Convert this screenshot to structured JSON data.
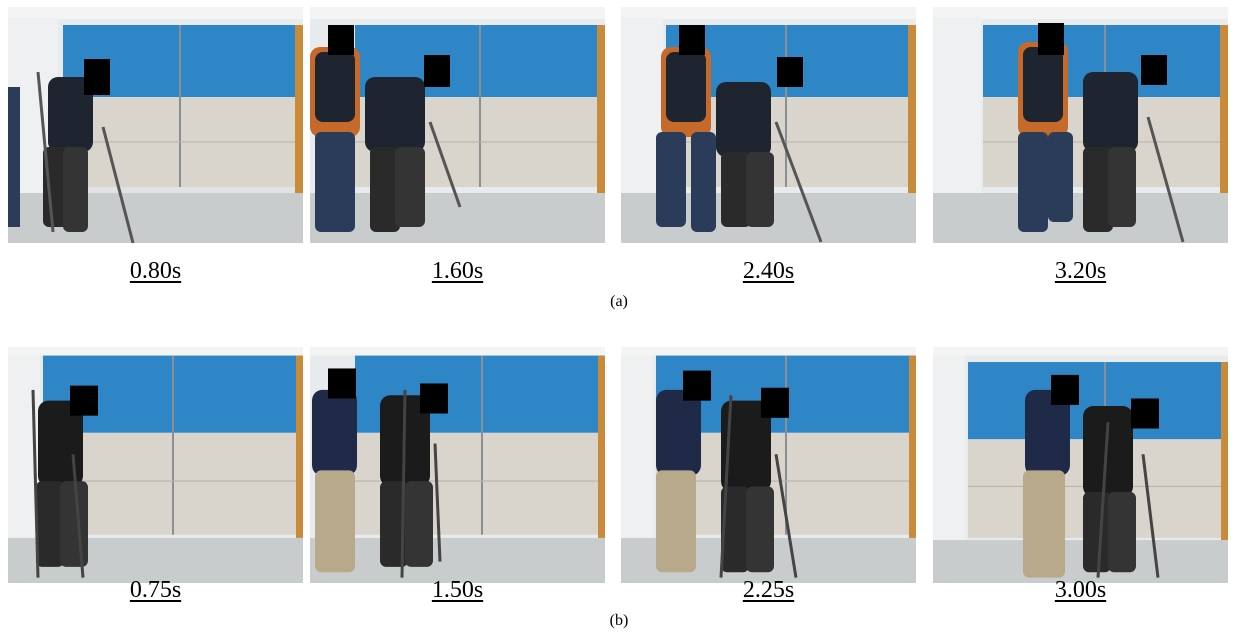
{
  "panels": [
    {
      "label": "(a)",
      "frames": [
        {
          "time": "0.80s"
        },
        {
          "time": "1.60s"
        },
        {
          "time": "2.40s"
        },
        {
          "time": "3.20s"
        }
      ]
    },
    {
      "label": "(b)",
      "frames": [
        {
          "time": "0.75s"
        },
        {
          "time": "1.50s"
        },
        {
          "time": "2.25s"
        },
        {
          "time": "3.00s"
        }
      ]
    }
  ],
  "colors": {
    "wall_blue": "#2f86c6",
    "wall_gray": "#d9d4cc",
    "floor": "#c9cccd",
    "curtain": "#e8ebee",
    "wood_trim": "#c98a3a",
    "exo_dark": "#2a2a2a",
    "censor": "#000000"
  }
}
